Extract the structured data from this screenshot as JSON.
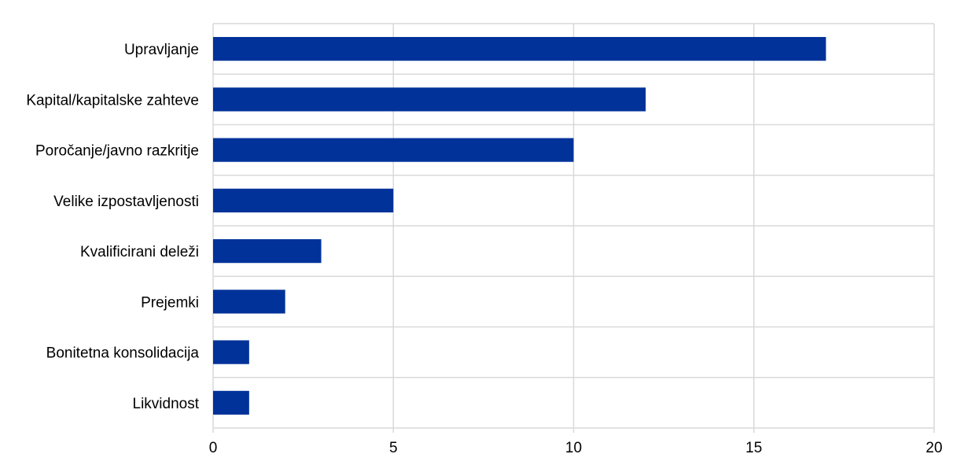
{
  "chart_data": {
    "type": "bar",
    "orientation": "horizontal",
    "categories": [
      "Upravljanje",
      "Kapital/kapitalske zahteve",
      "Poročanje/javno razkritje",
      "Velike izpostavljenosti",
      "Kvalificirani deleži",
      "Prejemki",
      "Bonitetna konsolidacija",
      "Likvidnost"
    ],
    "values": [
      17,
      12,
      10,
      5,
      3,
      2,
      1,
      1
    ],
    "title": "",
    "xlabel": "",
    "ylabel": "",
    "xlim": [
      0,
      20
    ],
    "xticks": [
      0,
      5,
      10,
      15,
      20
    ],
    "grid": true,
    "legend": "none",
    "bar_color": "#003299"
  }
}
